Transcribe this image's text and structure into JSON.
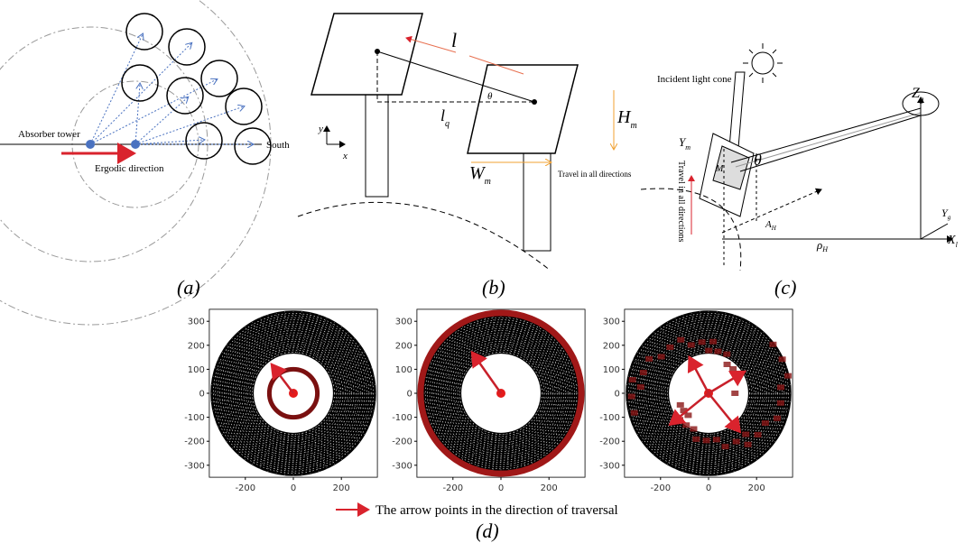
{
  "panel_a": {
    "labels": {
      "absorber_tower": "Absorber tower",
      "ergodic_direction": "Ergodic direction",
      "south": "South"
    },
    "caption": "(a)"
  },
  "panel_b": {
    "labels": {
      "l": "l",
      "theta": "θ",
      "lq": [
        "l",
        "q"
      ],
      "hm": [
        "H",
        "m"
      ],
      "wm": [
        "W",
        "m"
      ],
      "axis_y": "y",
      "axis_x": "x",
      "travel": "Travel in all directions"
    },
    "caption": "(b)"
  },
  "panel_c": {
    "labels": {
      "incident": "Incident light cone",
      "zg": [
        "Z",
        "g"
      ],
      "ym": [
        "Y",
        "m"
      ],
      "m": "M",
      "theta": "θ",
      "travel": "Travel in all directions",
      "ah": [
        "A",
        "H"
      ],
      "rho": [
        "ρ",
        "H"
      ],
      "xl": [
        "X",
        "l"
      ],
      "yg": [
        "Y",
        "g"
      ]
    },
    "caption": "(c)"
  },
  "panel_d": {
    "plots": [
      {
        "yticks": [
          300,
          200,
          100,
          0,
          -100,
          -200,
          -300
        ],
        "xticks": [
          -200,
          0,
          200
        ]
      },
      {
        "yticks": [
          300,
          200,
          100,
          0,
          -100,
          -200,
          -300
        ],
        "xticks": [
          -200,
          0,
          200
        ]
      },
      {
        "yticks": [
          300,
          200,
          100,
          0,
          -100,
          -200,
          -300
        ],
        "xticks": [
          -200,
          0,
          200
        ]
      }
    ],
    "legend": "The arrow points in the direction of traversal",
    "caption": "(d)"
  }
}
